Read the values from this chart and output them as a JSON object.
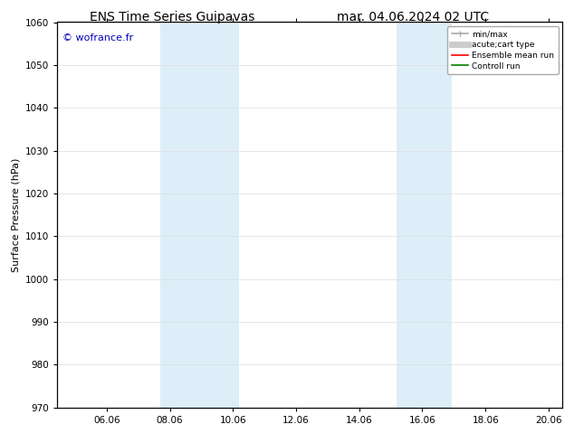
{
  "title_left": "ENS Time Series Guipavas",
  "title_right": "mar. 04.06.2024 02 UTC",
  "ylabel": "Surface Pressure (hPa)",
  "ylim": [
    970,
    1060
  ],
  "yticks": [
    970,
    980,
    990,
    1000,
    1010,
    1020,
    1030,
    1040,
    1050,
    1060
  ],
  "xlim_start": 4.5,
  "xlim_end": 20.5,
  "xticks": [
    6.06,
    8.06,
    10.06,
    12.06,
    14.06,
    16.06,
    18.06,
    20.06
  ],
  "xtick_labels": [
    "06.06",
    "08.06",
    "10.06",
    "12.06",
    "14.06",
    "16.06",
    "18.06",
    "20.06"
  ],
  "shaded_bands": [
    {
      "x_start": 7.75,
      "x_end": 10.25
    },
    {
      "x_start": 15.25,
      "x_end": 17.0
    }
  ],
  "shaded_color": "#ddeef8",
  "background_color": "#ffffff",
  "watermark_text": "© wofrance.fr",
  "watermark_color": "#0000bb",
  "legend_items": [
    {
      "label": "min/max",
      "color": "#aaaaaa",
      "lw": 1.2
    },
    {
      "label": "acute;cart type",
      "color": "#cccccc",
      "lw": 5
    },
    {
      "label": "Ensemble mean run",
      "color": "#ff0000",
      "lw": 1.2
    },
    {
      "label": "Controll run",
      "color": "#008000",
      "lw": 1.2
    }
  ],
  "grid_color": "#dddddd",
  "title_fontsize": 10,
  "axis_label_fontsize": 8,
  "tick_fontsize": 7.5
}
